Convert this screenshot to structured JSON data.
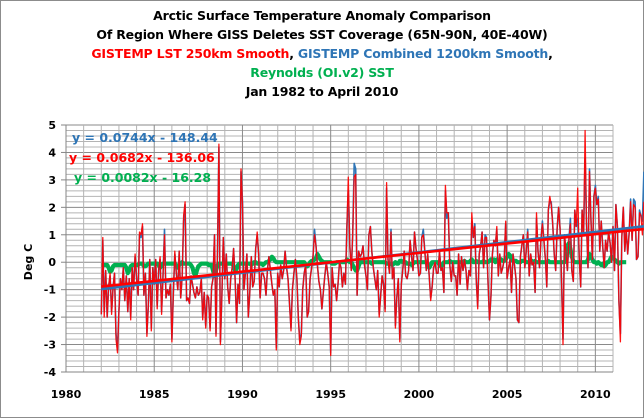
{
  "chart_data": {
    "type": "line",
    "title_lines": [
      {
        "text": "Arctic Surface Temperature Anomaly Comparison",
        "color": "#000000"
      },
      {
        "text": "Of Region Where GISS Deletes SST Coverage (65N-90N, 40E-40W)",
        "color": "#000000"
      }
    ],
    "legend_title": {
      "red": "GISTEMP LST 250km Smooth",
      "sep1": ", ",
      "blue": "GISTEMP Combined 1200km Smooth",
      "sep2": ",",
      "green": "Reynolds (OI.v2) SST"
    },
    "subtitle": "Jan 1982 to April 2010",
    "xlabel": "",
    "ylabel": "Deg C",
    "xlim": [
      1980,
      2011
    ],
    "ylim": [
      -4,
      5
    ],
    "xticks": [
      1980,
      1985,
      1990,
      1995,
      2000,
      2005,
      2010
    ],
    "yticks": [
      5,
      4,
      3,
      2,
      1,
      0,
      -1,
      -2,
      -3,
      -4
    ],
    "grid": true,
    "x_start": 1982.0,
    "x_step": 0.0833333,
    "series": [
      {
        "name": "GISTEMP Combined 1200km Smooth",
        "color": "#2e75b6",
        "trendline": {
          "slope": 0.0744,
          "intercept": -148.44,
          "label": "y = 0.0744x - 148.44"
        },
        "values": [
          -1.9,
          0.8,
          -1.8,
          -0.3,
          -2.0,
          -0.9,
          -0.5,
          -1.8,
          -0.9,
          -0.4,
          -2.6,
          -3.2,
          -1.8,
          -0.6,
          -1.0,
          -0.2,
          -1.4,
          -0.5,
          -1.8,
          -0.6,
          -2.0,
          -0.2,
          -1.0,
          0.2,
          -0.6,
          -1.2,
          1.0,
          0.9,
          1.3,
          -1.2,
          -0.4,
          -2.6,
          -1.6,
          0.1,
          -2.4,
          -0.2,
          -0.8,
          0.1,
          -1.6,
          -0.3,
          0.1,
          -1.8,
          -0.5,
          1.2,
          -1.3,
          -1.0,
          -1.2,
          -0.8,
          -2.8,
          -1.2,
          0.3,
          -0.4,
          -1.0,
          0.4,
          -1.3,
          -0.5,
          1.5,
          2.1,
          -1.4,
          -1.3,
          -1.5,
          -0.5,
          -0.8,
          -1.1,
          -1.3,
          -0.9,
          -1.2,
          -1.1,
          -0.6,
          -2.0,
          -1.1,
          -2.3,
          -1.2,
          -1.3,
          -2.4,
          -0.9,
          -0.6,
          1.0,
          -2.6,
          0.4,
          4.2,
          -2.9,
          -1.2,
          0.9,
          -0.6,
          0.3,
          -0.9,
          -1.5,
          -0.6,
          -0.2,
          0.5,
          -0.6,
          -2.2,
          -0.8,
          -1.5,
          3.3,
          2.2,
          -1.0,
          -0.4,
          0.3,
          -2.0,
          -1.1,
          0.2,
          -0.9,
          -0.7,
          0.5,
          1.0,
          0.3,
          -1.3,
          -0.4,
          -0.4,
          -0.6,
          -1.2,
          -0.3,
          0.2,
          -0.3,
          -0.8,
          -1.2,
          -1.0,
          -3.1,
          -0.4,
          -0.9,
          -0.1,
          -0.6,
          -0.3,
          0.4,
          -0.2,
          -0.6,
          -1.5,
          -2.4,
          -1.0,
          -0.4,
          0.1,
          -0.6,
          -2.0,
          -2.9,
          -2.6,
          -1.0,
          -0.4,
          -0.1,
          -2.0,
          -1.8,
          -0.6,
          -0.2,
          0.2,
          1.2,
          0.6,
          -0.1,
          -0.7,
          -1.0,
          -1.7,
          -1.1,
          -0.5,
          0.0,
          -0.4,
          -0.9,
          -3.3,
          -0.2,
          -0.9,
          -0.8,
          -1.4,
          -0.8,
          0.0,
          -0.2,
          -0.9,
          -0.4,
          -0.8,
          1.3,
          2.6,
          0.6,
          -0.3,
          1.0,
          3.6,
          3.4,
          -1.2,
          0.4,
          0.2,
          0.3,
          0.6,
          -0.1,
          -0.5,
          -1.0,
          1.0,
          1.3,
          0.4,
          -0.2,
          -0.6,
          -1.0,
          -0.3,
          -1.9,
          -1.2,
          -0.5,
          -0.8,
          -1.7,
          2.7,
          0.1,
          -0.4,
          1.2,
          -0.6,
          -0.2,
          -2.3,
          -1.3,
          -0.6,
          -2.8,
          -0.8,
          -0.3,
          0.4,
          -0.5,
          -0.6,
          -0.3,
          0.8,
          0.2,
          -0.3,
          1.1,
          0.5,
          0.1,
          -0.5,
          -0.4,
          0.9,
          1.2,
          0.4,
          -0.3,
          0.3,
          -0.5,
          -1.3,
          -0.9,
          -0.2,
          0.0,
          -0.4,
          -0.4,
          0.4,
          -0.3,
          -0.2,
          -1.1,
          2.6,
          1.6,
          1.8,
          -0.1,
          -0.7,
          0.0,
          -0.5,
          -0.5,
          -1.2,
          0.3,
          -0.8,
          0.2,
          -0.3,
          0.1,
          -0.3,
          -1.0,
          -0.3,
          -0.5,
          1.5,
          0.9,
          1.4,
          -0.6,
          -1.6,
          0.3,
          0.6,
          1.1,
          -0.2,
          1.0,
          0.9,
          -0.7,
          -2.1,
          -1.2,
          0.3,
          0.8,
          0.6,
          1.2,
          -0.5,
          0.3,
          -0.4,
          -0.2,
          0.1,
          1.4,
          -0.6,
          -0.2,
          0.1,
          -1.1,
          0.3,
          -0.1,
          -0.6,
          -2.1,
          -2.2,
          0.2,
          0.6,
          1.0,
          -0.2,
          0.4,
          1.2,
          -0.5,
          0.3,
          -0.1,
          0.0,
          -1.1,
          1.6,
          0.4,
          -0.2,
          0.8,
          1.5,
          0.8,
          0.1,
          -0.9,
          1.9,
          2.2,
          2.2,
          1.4,
          0.3,
          -0.3,
          1.2,
          2.0,
          1.2,
          -0.6,
          -2.8,
          1.0,
          0.4,
          -0.3,
          0.8,
          1.6,
          -0.3,
          -0.7,
          1.9,
          1.3,
          1.6,
          0.2,
          -0.9,
          1.9,
          1.0,
          3.8,
          1.4,
          -0.2,
          3.4,
          1.6,
          0.1,
          2.4,
          2.8,
          2.1,
          2.4,
          0.4,
          1.5,
          0.6,
          -0.2,
          0.8,
          0.4,
          1.1,
          0.7,
          0.0,
          1.3,
          -0.3,
          2.1,
          1.3,
          -1.4,
          -2.6,
          0.9,
          2.0,
          0.4,
          1.2,
          0.3,
          1.1,
          2.3,
          0.8,
          2.3,
          2.2,
          0.1,
          0.2,
          1.9,
          1.7,
          1.5,
          3.3
        ]
      },
      {
        "name": "GISTEMP LST 250km Smooth",
        "color": "#ff0000",
        "trendline": {
          "slope": 0.0682,
          "intercept": -136.06,
          "label": "y = 0.0682x - 136.06"
        },
        "values": [
          -1.9,
          0.9,
          -2.0,
          -0.3,
          -2.0,
          -0.9,
          -0.4,
          -1.9,
          -0.9,
          -0.4,
          -2.8,
          -3.3,
          -1.8,
          -0.6,
          -1.0,
          -0.2,
          -1.4,
          -0.5,
          -1.8,
          -0.6,
          -2.1,
          -0.2,
          -1.0,
          0.3,
          -0.6,
          -1.2,
          1.1,
          1.0,
          1.4,
          -1.2,
          -0.4,
          -2.7,
          -1.6,
          0.1,
          -2.5,
          -0.2,
          -0.8,
          0.1,
          -1.7,
          -0.3,
          0.2,
          -1.9,
          -0.5,
          1.0,
          -1.3,
          -1.0,
          -1.2,
          -0.8,
          -2.9,
          -1.2,
          0.4,
          -0.4,
          -1.0,
          0.4,
          -1.3,
          -0.5,
          1.7,
          2.2,
          -1.4,
          -1.3,
          -1.5,
          -0.5,
          -0.8,
          -1.1,
          -1.3,
          -0.9,
          -1.2,
          -1.1,
          -0.6,
          -2.1,
          -1.1,
          -2.4,
          -1.2,
          -1.3,
          -2.5,
          -0.9,
          -0.6,
          1.0,
          -2.7,
          0.4,
          4.3,
          -3.0,
          -1.2,
          0.9,
          -0.6,
          0.3,
          -0.9,
          -1.5,
          -0.6,
          -0.2,
          0.5,
          -0.6,
          -2.2,
          -0.8,
          -1.5,
          3.4,
          2.1,
          -1.0,
          -0.4,
          0.3,
          -2.0,
          -1.1,
          0.2,
          -0.9,
          -0.7,
          0.5,
          1.1,
          0.3,
          -1.3,
          -0.4,
          -0.4,
          -0.6,
          -1.2,
          -0.3,
          0.2,
          -0.3,
          -0.8,
          -1.2,
          -1.0,
          -3.2,
          -0.4,
          -0.9,
          -0.1,
          -0.6,
          -0.3,
          0.4,
          -0.2,
          -0.6,
          -1.5,
          -2.5,
          -1.0,
          -0.4,
          0.1,
          -0.6,
          -2.0,
          -3.0,
          -2.7,
          -1.0,
          -0.4,
          -0.1,
          -2.0,
          -1.8,
          -0.6,
          -0.2,
          0.2,
          1.0,
          0.6,
          -0.1,
          -0.7,
          -1.0,
          -1.7,
          -1.1,
          -0.5,
          0.0,
          -0.4,
          -0.9,
          -3.4,
          -0.2,
          -0.9,
          -0.8,
          -1.4,
          -0.8,
          0.0,
          -0.2,
          -0.9,
          -0.4,
          -0.8,
          1.3,
          3.1,
          0.6,
          -0.3,
          1.0,
          3.1,
          3.2,
          -1.2,
          0.4,
          0.2,
          0.3,
          0.6,
          -0.1,
          -0.5,
          -1.0,
          1.0,
          1.3,
          0.4,
          -0.2,
          -0.6,
          -1.0,
          -0.3,
          -2.0,
          -1.2,
          -0.5,
          -0.8,
          -1.8,
          2.9,
          0.1,
          -0.4,
          1.1,
          -0.6,
          -0.2,
          -2.4,
          -1.3,
          -0.6,
          -2.9,
          -0.8,
          -0.3,
          0.4,
          -0.5,
          -0.6,
          -0.3,
          0.8,
          0.2,
          -0.3,
          1.1,
          0.5,
          0.1,
          -0.5,
          -0.4,
          0.9,
          1.0,
          0.4,
          -0.3,
          0.3,
          -0.5,
          -1.4,
          -0.9,
          -0.2,
          0.0,
          -0.4,
          -0.4,
          0.4,
          -0.3,
          -0.2,
          -1.1,
          2.8,
          1.8,
          1.8,
          -0.1,
          -0.7,
          0.0,
          -0.5,
          -0.5,
          -1.2,
          0.3,
          -0.8,
          0.2,
          -0.3,
          0.1,
          -0.3,
          -1.0,
          -0.3,
          -0.5,
          1.8,
          0.9,
          1.3,
          -0.6,
          -1.7,
          0.3,
          0.6,
          1.1,
          -0.2,
          0.9,
          0.9,
          -0.7,
          -2.1,
          -1.2,
          0.3,
          0.8,
          0.6,
          1.3,
          -0.5,
          0.3,
          -0.4,
          -0.2,
          0.1,
          1.5,
          -0.6,
          -0.2,
          0.1,
          -1.1,
          0.3,
          -0.1,
          -0.6,
          -2.1,
          -2.2,
          0.2,
          0.6,
          1.0,
          -0.2,
          0.4,
          1.1,
          -0.5,
          0.3,
          -0.1,
          0.0,
          -1.1,
          1.8,
          0.4,
          -0.2,
          0.8,
          1.4,
          0.8,
          0.1,
          -0.9,
          1.9,
          2.4,
          2.1,
          1.4,
          0.3,
          -0.3,
          1.2,
          2.0,
          1.2,
          -0.6,
          -3.0,
          1.0,
          0.4,
          -0.3,
          0.8,
          1.4,
          -0.3,
          -0.7,
          1.9,
          1.3,
          2.7,
          0.2,
          -0.9,
          1.9,
          1.0,
          4.8,
          1.4,
          -0.2,
          3.3,
          1.6,
          0.1,
          2.4,
          2.7,
          2.1,
          2.3,
          0.4,
          1.5,
          0.6,
          -0.2,
          0.8,
          0.4,
          1.1,
          0.7,
          0.0,
          1.3,
          -0.3,
          2.1,
          1.3,
          -1.4,
          -2.9,
          0.9,
          2.0,
          0.4,
          1.2,
          0.3,
          1.1,
          2.2,
          0.8,
          2.1,
          2.0,
          0.1,
          0.2,
          1.8,
          1.7,
          1.0,
          2.2
        ]
      },
      {
        "name": "Reynolds (OI.v2) SST",
        "color": "#00b050",
        "trendline": {
          "slope": 0.0082,
          "intercept": -16.28,
          "label": "y = 0.0082x - 16.28"
        },
        "values": [
          -0.1,
          -0.1,
          -0.1,
          -0.1,
          -0.1,
          -0.2,
          -0.35,
          -0.3,
          -0.15,
          -0.1,
          -0.1,
          -0.1,
          -0.1,
          -0.1,
          -0.1,
          -0.1,
          -0.1,
          -0.2,
          -0.4,
          -0.3,
          -0.15,
          -0.1,
          -0.1,
          -0.1,
          -0.1,
          -0.1,
          -0.05,
          -0.05,
          -0.05,
          -0.15,
          -0.15,
          -0.1,
          -0.05,
          -0.05,
          -0.05,
          -0.05,
          -0.05,
          -0.05,
          -0.05,
          -0.1,
          -0.2,
          -0.1,
          -0.05,
          -0.05,
          -0.05,
          -0.05,
          -0.05,
          -0.05,
          -0.05,
          -0.05,
          -0.05,
          -0.1,
          -0.2,
          -0.1,
          -0.05,
          0.0,
          -0.05,
          -0.05,
          -0.05,
          -0.05,
          -0.05,
          -0.1,
          -0.2,
          -0.4,
          -0.5,
          -0.3,
          -0.15,
          -0.1,
          -0.05,
          -0.05,
          -0.05,
          -0.05,
          -0.05,
          -0.1,
          -0.1,
          -0.1,
          -0.3,
          -0.5,
          -0.3,
          -0.1,
          -0.05,
          -0.05,
          -0.05,
          -0.05,
          -0.05,
          -0.05,
          -0.05,
          -0.05,
          -0.05,
          -0.05,
          -0.15,
          -0.3,
          -0.25,
          -0.1,
          -0.05,
          -0.05,
          -0.05,
          -0.05,
          -0.05,
          -0.05,
          -0.05,
          -0.05,
          -0.1,
          -0.05,
          0.0,
          0.0,
          -0.05,
          -0.05,
          -0.05,
          -0.05,
          -0.1,
          -0.05,
          0.0,
          0.0,
          0.05,
          0.1,
          0.2,
          0.15,
          0.05,
          0.0,
          0.0,
          0.0,
          0.0,
          0.0,
          0.0,
          0.0,
          0.0,
          0.0,
          0.0,
          0.0,
          0.0,
          0.0,
          0.0,
          0.0,
          0.0,
          0.0,
          0.0,
          0.0,
          0.0,
          -0.1,
          -0.15,
          -0.1,
          0.0,
          0.05,
          0.05,
          0.1,
          0.15,
          0.3,
          0.2,
          0.1,
          0.05,
          0.0,
          0.0,
          0.0,
          0.0,
          0.0,
          0.0,
          -0.05,
          -0.05,
          -0.05,
          0.0,
          0.0,
          0.0,
          0.0,
          0.0,
          0.0,
          0.0,
          0.1,
          0.05,
          0.0,
          0.0,
          -0.1,
          -0.2,
          -0.3,
          -0.3,
          -0.15,
          0.0,
          0.0,
          0.0,
          0.0,
          0.0,
          0.0,
          0.0,
          0.0,
          -0.05,
          0.0,
          0.0,
          0.0,
          0.0,
          0.0,
          0.0,
          0.0,
          0.0,
          0.0,
          -0.05,
          -0.05,
          -0.05,
          -0.05,
          -0.1,
          -0.05,
          0.0,
          -0.05,
          -0.05,
          0.05,
          0.05,
          0.0,
          0.0,
          0.0,
          -0.05,
          -0.05,
          -0.05,
          -0.1,
          -0.05,
          0.0,
          0.0,
          0.0,
          0.0,
          0.0,
          0.0,
          0.0,
          0.0,
          0.0,
          -0.1,
          -0.2,
          -0.1,
          0.0,
          0.0,
          0.0,
          0.0,
          0.0,
          -0.1,
          -0.15,
          -0.1,
          0.0,
          0.0,
          0.0,
          0.0,
          0.05,
          0.0,
          0.0,
          0.0,
          0.0,
          0.0,
          0.0,
          0.0,
          0.0,
          0.0,
          0.05,
          0.0,
          0.0,
          0.0,
          0.05,
          0.1,
          0.0,
          0.0,
          0.05,
          0.0,
          0.0,
          0.0,
          0.0,
          0.05,
          0.0,
          0.0,
          0.0,
          0.05,
          0.1,
          0.05,
          0.1,
          0.0,
          0.1,
          0.05,
          0.05,
          0.1,
          0.05,
          0.05,
          0.1,
          0.2,
          0.3,
          0.25,
          0.1,
          0.05,
          0.05,
          0.05,
          0.0,
          0.0,
          0.0,
          0.05,
          0.05,
          0.05,
          0.0,
          0.0,
          0.0,
          0.0,
          0.05,
          0.0,
          0.05,
          0.0,
          0.0,
          0.0,
          0.0,
          0.0,
          0.0,
          0.0,
          0.0,
          0.05,
          0.0,
          0.0,
          0.0,
          0.0,
          0.0,
          0.0,
          0.0,
          0.0,
          0.0,
          0.0,
          0.0,
          0.1,
          0.6,
          0.7,
          0.5,
          0.2,
          0.05,
          0.0,
          0.0,
          0.0,
          0.0,
          0.0,
          0.0,
          0.0,
          0.0,
          0.0,
          0.1,
          0.3,
          0.2,
          0.1,
          0.0,
          0.0,
          -0.05,
          0.0,
          -0.05,
          -0.1,
          -0.05,
          -0.15,
          -0.1,
          0.0,
          0.0,
          0.1,
          0.2,
          0.15,
          0.1,
          0.05,
          0.0,
          -0.05,
          0.0,
          0.0,
          0.0,
          0.0,
          0.0
        ]
      }
    ]
  }
}
